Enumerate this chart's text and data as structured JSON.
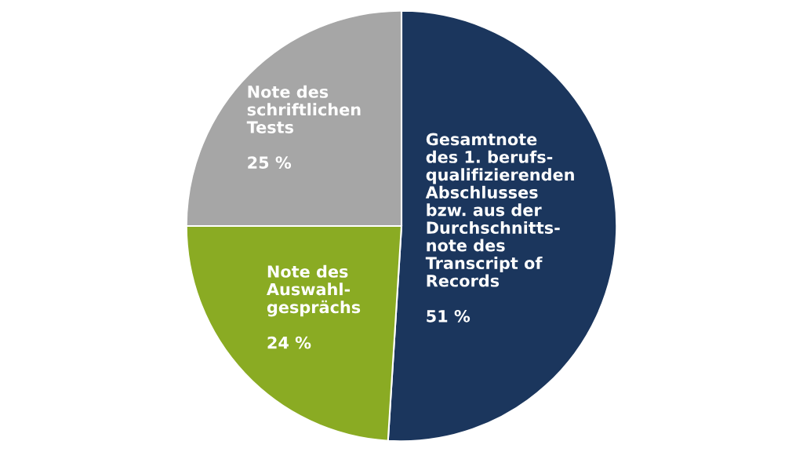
{
  "chart_data": {
    "type": "pie",
    "categories": [
      "Gesamtnote\ndes 1. berufs-\nqualifizierenden\nAbschlusses\nbzw. aus der\nDurchschnitts-\nnote des\nTranscript of\nRecords",
      "Note des\nAuswahl-\ngesprächs",
      "Note des\nschriftlichen\nTests"
    ],
    "values": [
      51,
      24,
      25
    ],
    "value_labels": [
      "51 %",
      "24 %",
      "25 %"
    ],
    "colors": [
      "#1b365d",
      "#8aab23",
      "#a6a6a6"
    ]
  }
}
